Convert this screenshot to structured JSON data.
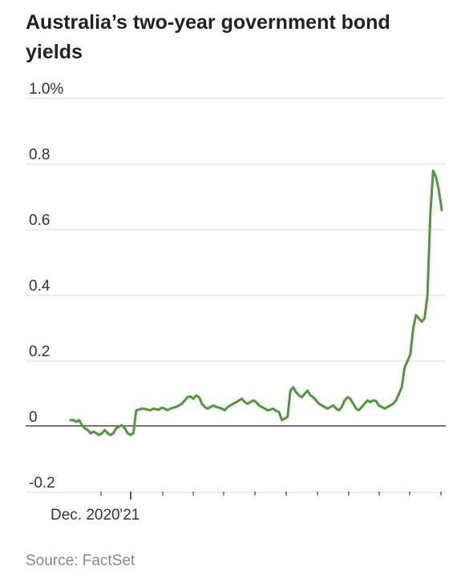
{
  "chart_data": {
    "type": "line",
    "title": "Australia’s two-year government bond yields",
    "source": "Source: FactSet",
    "xlabel": "",
    "ylabel": "",
    "ylim": [
      -0.2,
      1.0
    ],
    "x_tick_labels": [
      "Dec. 2020",
      "’21"
    ],
    "y_ticks": [
      {
        "value": 1.0,
        "label": "1.0%"
      },
      {
        "value": 0.8,
        "label": "0.8"
      },
      {
        "value": 0.6,
        "label": "0.6"
      },
      {
        "value": 0.4,
        "label": "0.4"
      },
      {
        "value": 0.2,
        "label": "0.2"
      },
      {
        "value": 0.0,
        "label": "0"
      },
      {
        "value": -0.2,
        "label": "-0.2"
      }
    ],
    "grid": true,
    "legend": "none",
    "line_color": "#4e9a3a",
    "series": [
      {
        "values": [
          0.02,
          0.02,
          0.015,
          0.02,
          0.005,
          -0.005,
          -0.01,
          -0.02,
          -0.015,
          -0.02,
          -0.025,
          -0.02,
          -0.01,
          -0.02,
          -0.025,
          -0.02,
          -0.005,
          0.0,
          0.005,
          -0.005,
          -0.02,
          -0.025,
          -0.02,
          0.05,
          0.052,
          0.055,
          0.054,
          0.052,
          0.05,
          0.055,
          0.053,
          0.052,
          0.058,
          0.055,
          0.05,
          0.055,
          0.058,
          0.06,
          0.065,
          0.07,
          0.08,
          0.09,
          0.092,
          0.085,
          0.095,
          0.09,
          0.07,
          0.06,
          0.055,
          0.06,
          0.065,
          0.06,
          0.058,
          0.055,
          0.05,
          0.06,
          0.065,
          0.07,
          0.075,
          0.08,
          0.085,
          0.075,
          0.07,
          0.075,
          0.08,
          0.075,
          0.065,
          0.06,
          0.055,
          0.05,
          0.052,
          0.055,
          0.048,
          0.045,
          0.02,
          0.025,
          0.03,
          0.11,
          0.12,
          0.105,
          0.095,
          0.09,
          0.1,
          0.11,
          0.095,
          0.09,
          0.08,
          0.07,
          0.065,
          0.06,
          0.055,
          0.06,
          0.065,
          0.055,
          0.05,
          0.06,
          0.08,
          0.09,
          0.085,
          0.07,
          0.055,
          0.05,
          0.06,
          0.07,
          0.08,
          0.075,
          0.08,
          0.078,
          0.065,
          0.06,
          0.055,
          0.06,
          0.065,
          0.07,
          0.08,
          0.1,
          0.12,
          0.18,
          0.2,
          0.22,
          0.3,
          0.34,
          0.33,
          0.32,
          0.33,
          0.4,
          0.65,
          0.78,
          0.76,
          0.72,
          0.66
        ]
      }
    ]
  }
}
